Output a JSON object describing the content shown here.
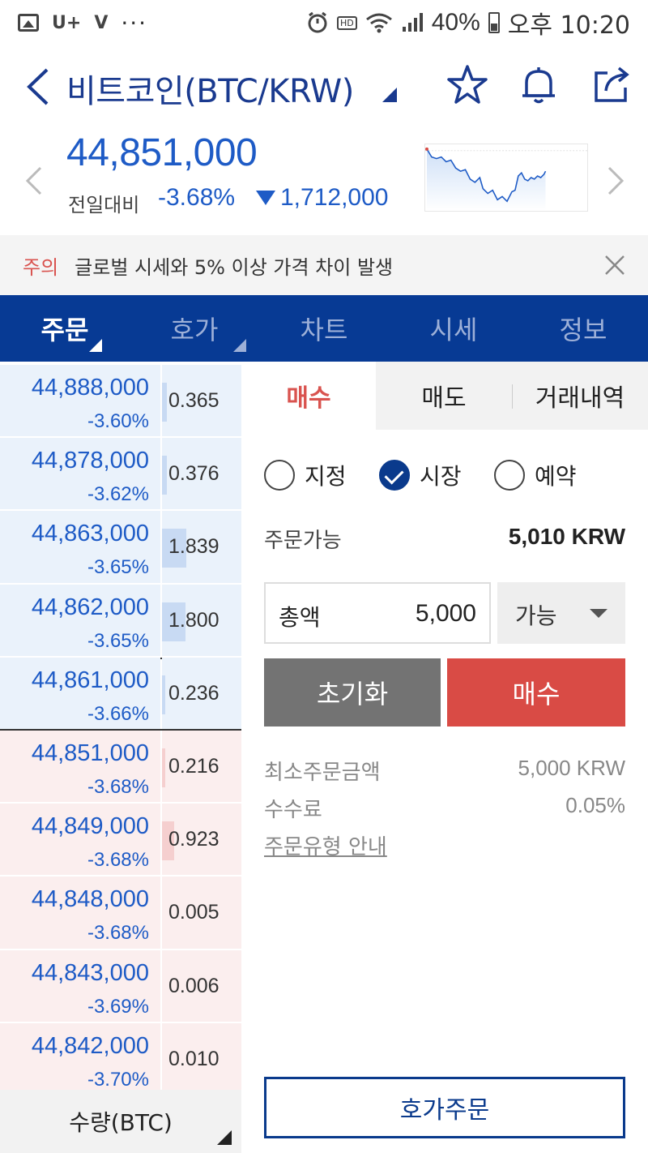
{
  "status_bar": {
    "left_icons": [
      "image-icon",
      "uplus-icon",
      "volte-icon",
      "more-dots-icon"
    ],
    "uplus": "U+",
    "volte": "V",
    "dots": "···",
    "hd": "HD",
    "battery": "40%",
    "time": "오후 10:20"
  },
  "header": {
    "title": "비트코인(BTC/KRW)"
  },
  "price": {
    "current": "44,851,000",
    "change_label": "전일대비",
    "change_rate": "-3.68%",
    "change_amount": "1,712,000",
    "color": "#1e5bc6"
  },
  "notice": {
    "tag": "주의",
    "text": "글로벌 시세와 5% 이상 가격 차이 발생"
  },
  "tabs": [
    {
      "label": "주문",
      "active": true
    },
    {
      "label": "호가",
      "active": false
    },
    {
      "label": "차트",
      "active": false
    },
    {
      "label": "시세",
      "active": false
    },
    {
      "label": "정보",
      "active": false
    }
  ],
  "orderbook": {
    "rows": [
      {
        "price": "44,888,000",
        "rate": "-3.60%",
        "qty": "0.365",
        "side": "ask"
      },
      {
        "price": "44,878,000",
        "rate": "-3.62%",
        "qty": "0.376",
        "side": "ask"
      },
      {
        "price": "44,863,000",
        "rate": "-3.65%",
        "qty": "1.839",
        "side": "ask"
      },
      {
        "price": "44,862,000",
        "rate": "-3.65%",
        "qty": "1.800",
        "side": "ask"
      },
      {
        "price": "44,861,000",
        "rate": "-3.66%",
        "qty": "0.236",
        "side": "ask"
      },
      {
        "price": "44,851,000",
        "rate": "-3.68%",
        "qty": "0.216",
        "side": "bid"
      },
      {
        "price": "44,849,000",
        "rate": "-3.68%",
        "qty": "0.923",
        "side": "bid"
      },
      {
        "price": "44,848,000",
        "rate": "-3.68%",
        "qty": "0.005",
        "side": "bid"
      },
      {
        "price": "44,843,000",
        "rate": "-3.69%",
        "qty": "0.006",
        "side": "bid"
      },
      {
        "price": "44,842,000",
        "rate": "-3.70%",
        "qty": "0.010",
        "side": "bid"
      }
    ],
    "footer_label": "수량(BTC)",
    "ask_color": "#eaf2fb",
    "bid_color": "#fbeeee"
  },
  "order_panel": {
    "tabs": {
      "buy": "매수",
      "sell": "매도",
      "history": "거래내역"
    },
    "order_types": {
      "limit": "지정",
      "market": "시장",
      "reserved": "예약",
      "selected": "시장"
    },
    "available_label": "주문가능",
    "available_value": "5,010 KRW",
    "amount_label": "총액",
    "amount_value": "5,000",
    "available_select": "가능",
    "reset_button": "초기화",
    "buy_button": "매수",
    "min_order_label": "최소주문금액",
    "min_order_value": "5,000 KRW",
    "fee_label": "수수료",
    "fee_value": "0.05%",
    "guide_link": "주문유형 안내",
    "orderbook_order_button": "호가주문",
    "buy_color": "#d94b45",
    "brand_color": "#073a94"
  }
}
